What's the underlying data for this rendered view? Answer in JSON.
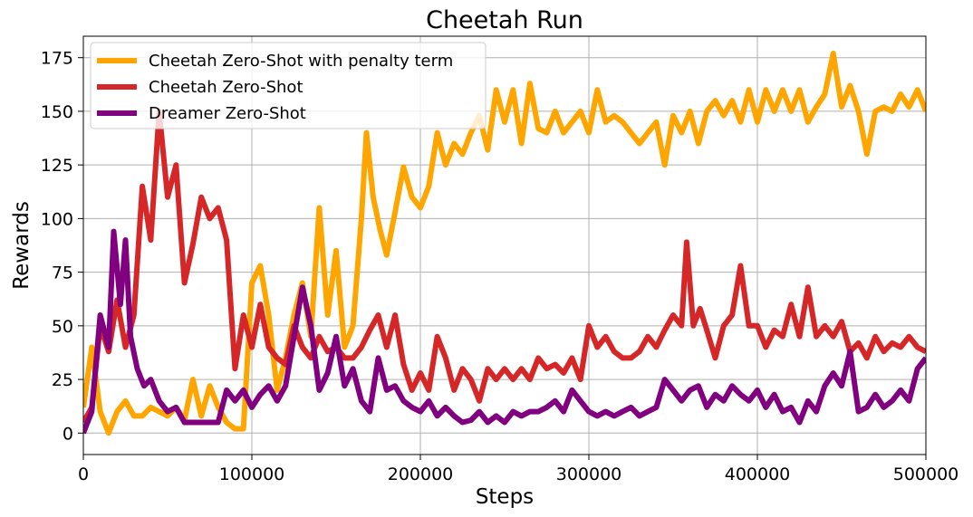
{
  "chart_data": {
    "type": "line",
    "title": "Cheetah Run",
    "xlabel": "Steps",
    "ylabel": "Rewards",
    "xlim": [
      0,
      500000
    ],
    "ylim": [
      -10,
      185
    ],
    "xticks": [
      0,
      100000,
      200000,
      300000,
      400000,
      500000
    ],
    "xtick_labels": [
      "0",
      "100000",
      "200000",
      "300000",
      "400000",
      "500000"
    ],
    "yticks": [
      0,
      25,
      50,
      75,
      100,
      125,
      150,
      175
    ],
    "ytick_labels": [
      "0",
      "25",
      "50",
      "75",
      "100",
      "125",
      "150",
      "175"
    ],
    "grid": true,
    "legend_position": "top-left",
    "series": [
      {
        "name": "Cheetah Zero-Shot with penalty term",
        "color": "#FFA500",
        "x": [
          0,
          5000,
          10000,
          15000,
          20000,
          25000,
          30000,
          35000,
          40000,
          45000,
          50000,
          55000,
          60000,
          65000,
          70000,
          75000,
          80000,
          85000,
          90000,
          95000,
          100000,
          105000,
          110000,
          115000,
          120000,
          125000,
          130000,
          135000,
          140000,
          145000,
          150000,
          155000,
          160000,
          165000,
          168000,
          172000,
          176000,
          180000,
          185000,
          190000,
          195000,
          200000,
          205000,
          210000,
          215000,
          220000,
          225000,
          230000,
          235000,
          240000,
          245000,
          250000,
          255000,
          260000,
          265000,
          270000,
          275000,
          280000,
          285000,
          290000,
          295000,
          300000,
          305000,
          310000,
          315000,
          320000,
          325000,
          330000,
          335000,
          340000,
          345000,
          350000,
          355000,
          360000,
          365000,
          370000,
          375000,
          380000,
          385000,
          390000,
          395000,
          400000,
          405000,
          410000,
          415000,
          420000,
          425000,
          430000,
          435000,
          440000,
          445000,
          450000,
          455000,
          460000,
          465000,
          470000,
          475000,
          480000,
          485000,
          490000,
          495000,
          500000
        ],
        "y": [
          12,
          40,
          10,
          0,
          10,
          15,
          8,
          8,
          12,
          10,
          8,
          12,
          6,
          25,
          8,
          22,
          12,
          5,
          2,
          2,
          70,
          78,
          55,
          20,
          35,
          55,
          70,
          45,
          105,
          55,
          85,
          40,
          50,
          100,
          140,
          110,
          95,
          83,
          103,
          124,
          110,
          105,
          115,
          140,
          125,
          135,
          130,
          140,
          148,
          132,
          160,
          145,
          160,
          135,
          163,
          142,
          140,
          150,
          140,
          145,
          150,
          140,
          160,
          145,
          148,
          145,
          140,
          135,
          140,
          145,
          125,
          148,
          140,
          150,
          135,
          150,
          155,
          148,
          155,
          145,
          160,
          145,
          160,
          150,
          160,
          150,
          160,
          145,
          152,
          158,
          177,
          152,
          162,
          150,
          130,
          150,
          152,
          150,
          158,
          152,
          160,
          150
        ]
      },
      {
        "name": "Cheetah Zero-Shot",
        "color": "#D62728",
        "x": [
          0,
          5000,
          10000,
          15000,
          20000,
          25000,
          30000,
          35000,
          40000,
          45000,
          50000,
          55000,
          60000,
          65000,
          70000,
          75000,
          80000,
          85000,
          90000,
          95000,
          100000,
          105000,
          110000,
          115000,
          120000,
          125000,
          130000,
          135000,
          140000,
          145000,
          150000,
          155000,
          160000,
          165000,
          170000,
          175000,
          180000,
          185000,
          190000,
          195000,
          200000,
          205000,
          210000,
          215000,
          220000,
          225000,
          230000,
          235000,
          240000,
          245000,
          250000,
          255000,
          260000,
          265000,
          270000,
          275000,
          280000,
          285000,
          290000,
          295000,
          300000,
          305000,
          310000,
          315000,
          320000,
          325000,
          330000,
          335000,
          340000,
          345000,
          350000,
          355000,
          358000,
          362000,
          366000,
          370000,
          375000,
          380000,
          385000,
          390000,
          395000,
          400000,
          405000,
          410000,
          415000,
          420000,
          425000,
          430000,
          435000,
          440000,
          445000,
          450000,
          455000,
          460000,
          465000,
          470000,
          475000,
          480000,
          485000,
          490000,
          495000,
          500000
        ],
        "y": [
          5,
          12,
          50,
          38,
          62,
          40,
          55,
          115,
          90,
          150,
          110,
          125,
          70,
          88,
          110,
          100,
          105,
          90,
          30,
          55,
          40,
          60,
          40,
          35,
          32,
          50,
          40,
          35,
          45,
          38,
          40,
          35,
          35,
          40,
          48,
          55,
          40,
          55,
          32,
          20,
          28,
          20,
          45,
          35,
          20,
          30,
          25,
          15,
          30,
          25,
          30,
          25,
          30,
          25,
          35,
          30,
          32,
          28,
          35,
          25,
          50,
          40,
          45,
          38,
          35,
          35,
          38,
          45,
          40,
          48,
          55,
          50,
          89,
          50,
          58,
          48,
          35,
          50,
          55,
          78,
          50,
          50,
          40,
          48,
          45,
          60,
          45,
          68,
          45,
          50,
          45,
          52,
          38,
          42,
          35,
          45,
          38,
          42,
          40,
          45,
          40,
          38
        ]
      },
      {
        "name": "Dreamer Zero-Shot",
        "color": "#800080",
        "x": [
          0,
          5000,
          10000,
          15000,
          18000,
          22000,
          25000,
          28000,
          32000,
          36000,
          40000,
          45000,
          50000,
          55000,
          60000,
          65000,
          70000,
          75000,
          80000,
          85000,
          90000,
          95000,
          100000,
          105000,
          110000,
          115000,
          120000,
          125000,
          130000,
          135000,
          140000,
          145000,
          150000,
          155000,
          160000,
          165000,
          170000,
          175000,
          180000,
          185000,
          190000,
          195000,
          200000,
          205000,
          210000,
          215000,
          220000,
          225000,
          230000,
          235000,
          240000,
          245000,
          250000,
          255000,
          260000,
          265000,
          270000,
          275000,
          280000,
          285000,
          290000,
          295000,
          300000,
          305000,
          310000,
          315000,
          320000,
          325000,
          330000,
          335000,
          340000,
          345000,
          350000,
          355000,
          360000,
          365000,
          370000,
          375000,
          380000,
          385000,
          390000,
          395000,
          400000,
          405000,
          410000,
          415000,
          420000,
          425000,
          430000,
          435000,
          440000,
          445000,
          450000,
          455000,
          460000,
          465000,
          470000,
          475000,
          480000,
          485000,
          490000,
          495000,
          500000
        ],
        "y": [
          0,
          10,
          55,
          40,
          94,
          60,
          90,
          45,
          30,
          22,
          25,
          15,
          10,
          12,
          5,
          5,
          5,
          5,
          5,
          20,
          15,
          20,
          12,
          18,
          22,
          15,
          22,
          45,
          68,
          50,
          20,
          28,
          45,
          22,
          30,
          15,
          10,
          35,
          20,
          22,
          15,
          12,
          10,
          15,
          8,
          12,
          8,
          5,
          6,
          10,
          5,
          8,
          5,
          10,
          8,
          10,
          10,
          12,
          15,
          10,
          20,
          15,
          10,
          8,
          10,
          8,
          10,
          12,
          8,
          10,
          12,
          25,
          20,
          15,
          20,
          22,
          12,
          18,
          15,
          22,
          18,
          15,
          20,
          12,
          18,
          10,
          12,
          5,
          15,
          10,
          22,
          28,
          22,
          38,
          10,
          12,
          18,
          12,
          15,
          20,
          15,
          30,
          35
        ]
      }
    ]
  }
}
